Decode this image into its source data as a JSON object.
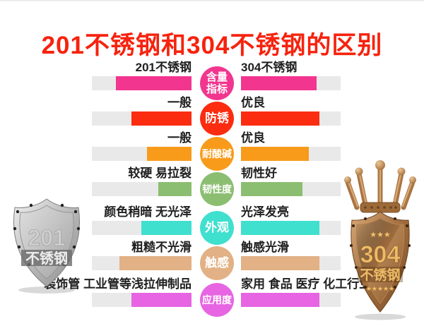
{
  "page": {
    "title": "201不锈钢和304不锈钢的区别",
    "title_color": "#f6230e",
    "background_color": "#ffffff",
    "track_color": "#e9e9e9"
  },
  "rows": [
    {
      "category": "含量\n指标",
      "category_name": "含量指标",
      "color": "#f2368f",
      "left_label": "201不锈钢",
      "right_label": "304不锈钢",
      "left_pct": 76,
      "right_pct": 76
    },
    {
      "category": "防锈",
      "category_name": "防锈",
      "color": "#fb2c10",
      "left_label": "一般",
      "right_label": "优良",
      "left_pct": 60,
      "right_pct": 79
    },
    {
      "category": "耐酸碱",
      "category_name": "耐酸碱",
      "color": "#f89b1b",
      "left_label": "一般",
      "right_label": "优良",
      "left_pct": 45,
      "right_pct": 68
    },
    {
      "category": "韧性度",
      "category_name": "韧性度",
      "color": "#8cbe71",
      "left_label": "较硬 易拉裂",
      "right_label": "韧性好",
      "left_pct": 33,
      "right_pct": 62
    },
    {
      "category": "外观",
      "category_name": "外观",
      "color": "#40e0cf",
      "left_label": "颜色稍暗 无光泽",
      "right_label": "光泽发亮",
      "left_pct": 50,
      "right_pct": 79
    },
    {
      "category": "触感",
      "category_name": "触感",
      "color": "#e2b185",
      "left_label": "粗糙不光滑",
      "right_label": "触感光滑",
      "left_pct": 72,
      "right_pct": 79
    },
    {
      "category": "应用度",
      "category_name": "应用度",
      "color": "#e765e2",
      "left_label": "装饰管 工业管等浅拉伸制品",
      "right_label": "家用 食品 医疗 化工行业",
      "left_pct": 60,
      "right_pct": 79
    }
  ],
  "badges": {
    "left": {
      "number": "201",
      "text": "不锈钢",
      "material": "silver-shield"
    },
    "right": {
      "number": "304",
      "text": "不锈钢",
      "material": "bronze-shield-with-crown",
      "stars_top": "★★★",
      "stars_bottom": "★★★★★"
    }
  },
  "chart_data": {
    "type": "bar",
    "title": "201不锈钢和304不锈钢的区别",
    "categories": [
      "含量指标",
      "防锈",
      "耐酸碱",
      "韧性度",
      "外观",
      "触感",
      "应用度"
    ],
    "series": [
      {
        "name": "201不锈钢",
        "values": [
          76,
          60,
          45,
          33,
          50,
          72,
          60
        ],
        "value_labels": [
          "201不锈钢",
          "一般",
          "一般",
          "较硬 易拉裂",
          "颜色稍暗 无光泽",
          "粗糙不光滑",
          "装饰管 工业管等浅拉伸制品"
        ]
      },
      {
        "name": "304不锈钢",
        "values": [
          76,
          79,
          68,
          62,
          79,
          79,
          79
        ],
        "value_labels": [
          "304不锈钢",
          "优良",
          "优良",
          "韧性好",
          "光泽发亮",
          "触感光滑",
          "家用 食品 医疗 化工行业"
        ]
      }
    ],
    "unit": "% of track length (estimated from bar pixel widths)",
    "bar_colors": [
      "#f2368f",
      "#fb2c10",
      "#f89b1b",
      "#8cbe71",
      "#40e0cf",
      "#e2b185",
      "#e765e2"
    ],
    "layout": "horizontal paired bars; left series right-aligned toward center, right series left-aligned from center; colored category circle between the pair"
  }
}
